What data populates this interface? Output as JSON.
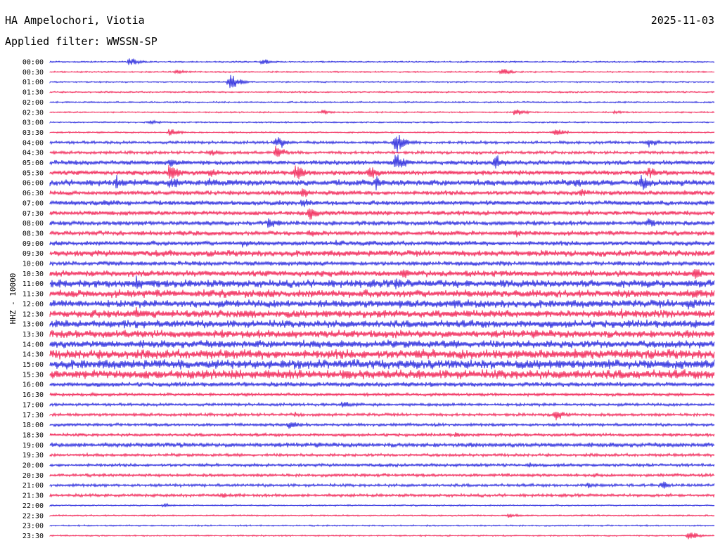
{
  "header": {
    "station": "HA Ampelochori, Viotia",
    "date": "2025-11-03",
    "filter": "Applied filter: WWSSN-SP"
  },
  "chart_data": {
    "type": "line",
    "ylabel": "HHZ - 10000",
    "row_labels": [
      "00:00",
      "00:30",
      "01:00",
      "01:30",
      "02:00",
      "02:30",
      "03:00",
      "03:30",
      "04:00",
      "04:30",
      "05:00",
      "05:30",
      "06:00",
      "06:30",
      "07:00",
      "07:30",
      "08:00",
      "08:30",
      "09:00",
      "09:30",
      "10:00",
      "10:30",
      "11:00",
      "11:30",
      "12:00",
      "12:30",
      "13:00",
      "13:30",
      "14:00",
      "14:30",
      "15:00",
      "15:30",
      "16:00",
      "16:30",
      "17:00",
      "17:30",
      "18:00",
      "18:30",
      "19:00",
      "19:30",
      "20:00",
      "20:30",
      "21:00",
      "21:30",
      "22:00",
      "22:30",
      "23:00",
      "23:30"
    ],
    "row_colors": [
      "#1a1adb",
      "#f0144a"
    ],
    "noise_level": [
      1,
      1,
      1,
      1,
      1,
      1,
      1,
      1,
      2,
      2,
      3,
      3,
      4,
      3,
      3,
      3,
      3,
      3,
      3,
      4,
      3,
      4,
      5,
      5,
      5,
      5,
      5,
      5,
      5,
      6,
      6,
      6,
      3,
      2,
      2,
      2,
      2,
      2,
      3,
      2,
      2,
      2,
      2,
      2,
      1,
      1,
      1,
      1
    ],
    "events": [
      {
        "row": 0,
        "x": 0.12,
        "amp": 8
      },
      {
        "row": 0,
        "x": 0.32,
        "amp": 6
      },
      {
        "row": 1,
        "x": 0.19,
        "amp": 5
      },
      {
        "row": 1,
        "x": 0.68,
        "amp": 7
      },
      {
        "row": 2,
        "x": 0.27,
        "amp": 14
      },
      {
        "row": 5,
        "x": 0.41,
        "amp": 5
      },
      {
        "row": 5,
        "x": 0.7,
        "amp": 9
      },
      {
        "row": 5,
        "x": 0.85,
        "amp": 4
      },
      {
        "row": 6,
        "x": 0.15,
        "amp": 5
      },
      {
        "row": 7,
        "x": 0.76,
        "amp": 9
      },
      {
        "row": 7,
        "x": 0.18,
        "amp": 8
      },
      {
        "row": 8,
        "x": 0.52,
        "amp": 20
      },
      {
        "row": 8,
        "x": 0.34,
        "amp": 15
      },
      {
        "row": 8,
        "x": 0.9,
        "amp": 10
      },
      {
        "row": 9,
        "x": 0.34,
        "amp": 12
      },
      {
        "row": 9,
        "x": 0.24,
        "amp": 7
      },
      {
        "row": 10,
        "x": 0.52,
        "amp": 18
      },
      {
        "row": 10,
        "x": 0.67,
        "amp": 14
      },
      {
        "row": 10,
        "x": 0.18,
        "amp": 10
      },
      {
        "row": 11,
        "x": 0.18,
        "amp": 18
      },
      {
        "row": 11,
        "x": 0.37,
        "amp": 16
      },
      {
        "row": 11,
        "x": 0.48,
        "amp": 15
      },
      {
        "row": 11,
        "x": 0.9,
        "amp": 12
      },
      {
        "row": 11,
        "x": 0.24,
        "amp": 10
      },
      {
        "row": 12,
        "x": 0.1,
        "amp": 12
      },
      {
        "row": 12,
        "x": 0.18,
        "amp": 14
      },
      {
        "row": 12,
        "x": 0.24,
        "amp": 12
      },
      {
        "row": 12,
        "x": 0.49,
        "amp": 12
      },
      {
        "row": 12,
        "x": 0.89,
        "amp": 15
      },
      {
        "row": 12,
        "x": 0.79,
        "amp": 10
      },
      {
        "row": 13,
        "x": 0.38,
        "amp": 10
      },
      {
        "row": 13,
        "x": 0.8,
        "amp": 8
      },
      {
        "row": 14,
        "x": 0.38,
        "amp": 10
      },
      {
        "row": 14,
        "x": 0.08,
        "amp": 7
      },
      {
        "row": 15,
        "x": 0.39,
        "amp": 14
      },
      {
        "row": 15,
        "x": 0.81,
        "amp": 6
      },
      {
        "row": 16,
        "x": 0.33,
        "amp": 12
      },
      {
        "row": 16,
        "x": 0.9,
        "amp": 10
      },
      {
        "row": 17,
        "x": 0.7,
        "amp": 8
      },
      {
        "row": 17,
        "x": 0.39,
        "amp": 10
      },
      {
        "row": 18,
        "x": 0.29,
        "amp": 8
      },
      {
        "row": 18,
        "x": 0.43,
        "amp": 6
      },
      {
        "row": 19,
        "x": 0.18,
        "amp": 6
      },
      {
        "row": 21,
        "x": 0.53,
        "amp": 10
      },
      {
        "row": 21,
        "x": 0.97,
        "amp": 12
      },
      {
        "row": 22,
        "x": 0.52,
        "amp": 11
      },
      {
        "row": 22,
        "x": 0.13,
        "amp": 14
      },
      {
        "row": 23,
        "x": 0.97,
        "amp": 10
      },
      {
        "row": 24,
        "x": 0.61,
        "amp": 9
      },
      {
        "row": 24,
        "x": 0.96,
        "amp": 14
      },
      {
        "row": 25,
        "x": 0.13,
        "amp": 12
      },
      {
        "row": 25,
        "x": 0.3,
        "amp": 10
      },
      {
        "row": 25,
        "x": 0.86,
        "amp": 9
      },
      {
        "row": 26,
        "x": 0.08,
        "amp": 8
      },
      {
        "row": 26,
        "x": 0.97,
        "amp": 9
      },
      {
        "row": 27,
        "x": 0.36,
        "amp": 8
      },
      {
        "row": 29,
        "x": 0.6,
        "amp": 7
      },
      {
        "row": 30,
        "x": 0.17,
        "amp": 8
      },
      {
        "row": 30,
        "x": 0.82,
        "amp": 8
      },
      {
        "row": 31,
        "x": 0.44,
        "amp": 10
      },
      {
        "row": 31,
        "x": 0.5,
        "amp": 9
      },
      {
        "row": 32,
        "x": 0.53,
        "amp": 5
      },
      {
        "row": 34,
        "x": 0.44,
        "amp": 7
      },
      {
        "row": 35,
        "x": 0.76,
        "amp": 12
      },
      {
        "row": 35,
        "x": 0.37,
        "amp": 5
      },
      {
        "row": 36,
        "x": 0.36,
        "amp": 10
      },
      {
        "row": 37,
        "x": 0.61,
        "amp": 5
      },
      {
        "row": 38,
        "x": 0.14,
        "amp": 4
      },
      {
        "row": 40,
        "x": 0.72,
        "amp": 6
      },
      {
        "row": 41,
        "x": 0.82,
        "amp": 5
      },
      {
        "row": 42,
        "x": 0.92,
        "amp": 8
      },
      {
        "row": 42,
        "x": 0.81,
        "amp": 6
      },
      {
        "row": 43,
        "x": 0.26,
        "amp": 6
      },
      {
        "row": 44,
        "x": 0.17,
        "amp": 4
      },
      {
        "row": 45,
        "x": 0.69,
        "amp": 5
      },
      {
        "row": 47,
        "x": 0.96,
        "amp": 9
      }
    ]
  }
}
